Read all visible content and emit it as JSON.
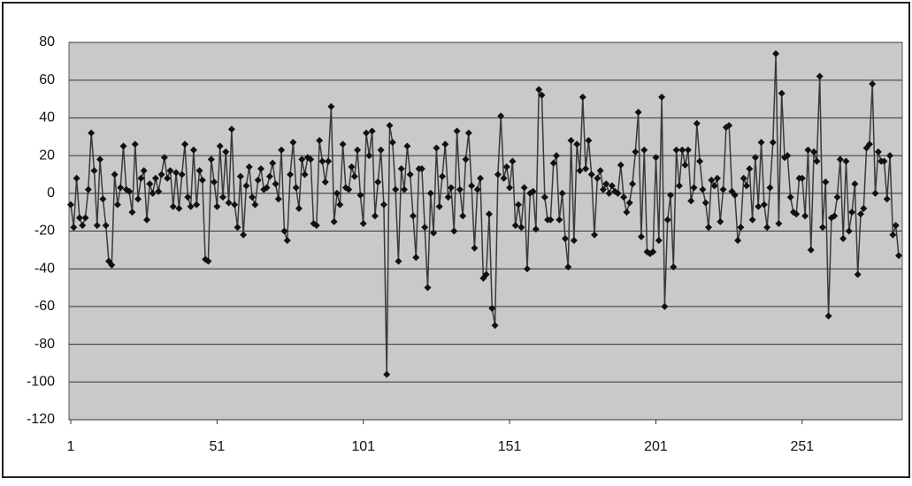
{
  "chart_data": {
    "type": "line",
    "values": [
      -6,
      -18,
      8,
      -13,
      -17,
      -13,
      2,
      32,
      12,
      -17,
      18,
      -3,
      -17,
      -36,
      -38,
      10,
      -6,
      3,
      25,
      2,
      1,
      -10,
      26,
      -3,
      8,
      12,
      -14,
      5,
      0,
      8,
      1,
      10,
      19,
      8,
      12,
      -7,
      11,
      -8,
      10,
      26,
      -2,
      -7,
      23,
      -6,
      12,
      7,
      -35,
      -36,
      18,
      6,
      -7,
      25,
      -2,
      22,
      -5,
      34,
      -6,
      -18,
      9,
      -22,
      4,
      14,
      -2,
      -6,
      7,
      13,
      2,
      3,
      9,
      16,
      5,
      -3,
      23,
      -20,
      -25,
      10,
      27,
      3,
      -8,
      18,
      10,
      19,
      18,
      -16,
      -17,
      28,
      17,
      6,
      17,
      46,
      -15,
      0,
      -6,
      26,
      3,
      2,
      14,
      9,
      23,
      -1,
      -16,
      32,
      20,
      33,
      -12,
      6,
      23,
      -6,
      -96,
      36,
      27,
      2,
      -36,
      13,
      2,
      25,
      10,
      -12,
      -34,
      13,
      13,
      -18,
      -50,
      0,
      -21,
      24,
      -7,
      9,
      26,
      -2,
      3,
      -20,
      33,
      2,
      -12,
      18,
      32,
      4,
      -29,
      2,
      8,
      -45,
      -43,
      -11,
      -61,
      -70,
      10,
      41,
      8,
      14,
      3,
      17,
      -17,
      -6,
      -18,
      3,
      -40,
      0,
      1,
      -19,
      55,
      52,
      -2,
      -14,
      -14,
      16,
      20,
      -14,
      0,
      -24,
      -39,
      28,
      -25,
      26,
      12,
      51,
      13,
      28,
      10,
      -22,
      8,
      12,
      2,
      5,
      0,
      4,
      1,
      0,
      15,
      -2,
      -10,
      -5,
      5,
      22,
      43,
      -23,
      23,
      -31,
      -32,
      -31,
      19,
      -25,
      51,
      -60,
      -14,
      -1,
      -39,
      23,
      4,
      23,
      15,
      23,
      -4,
      3,
      37,
      17,
      2,
      -5,
      -18,
      7,
      4,
      8,
      -15,
      2,
      35,
      36,
      1,
      -1,
      -25,
      -18,
      8,
      4,
      13,
      -14,
      19,
      -7,
      27,
      -6,
      -18,
      3,
      27,
      74,
      -16,
      53,
      19,
      20,
      -2,
      -10,
      -11,
      8,
      8,
      -12,
      23,
      -30,
      22,
      17,
      62,
      -18,
      6,
      -65,
      -13,
      -12,
      -2,
      18,
      -24,
      17,
      -20,
      -10,
      5,
      -43,
      -11,
      -8,
      24,
      26,
      58,
      0,
      22,
      17,
      17,
      -3,
      20,
      -22,
      -17,
      -33
    ],
    "color": "#3a3a3a",
    "xlim": [
      1,
      284
    ],
    "xticks": [
      1,
      51,
      101,
      151,
      201,
      251
    ],
    "ylim": [
      -120,
      80
    ],
    "yticks": [
      -120,
      -100,
      -80,
      -60,
      -40,
      -20,
      0,
      20,
      40,
      60,
      80
    ],
    "grid": true
  }
}
